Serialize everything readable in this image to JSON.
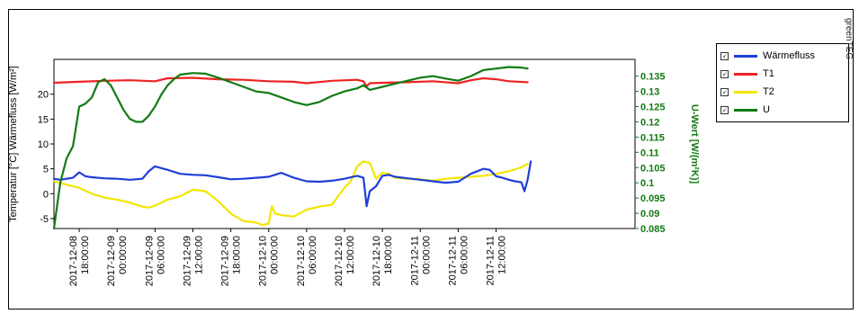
{
  "watermark": "greenTEG",
  "legend": {
    "items": [
      {
        "label": "Wärmefluss",
        "checked": "🗸",
        "color": "#1f3fd6"
      },
      {
        "label": "T1",
        "checked": "🗸",
        "color": "#ee2222"
      },
      {
        "label": "T2",
        "checked": "🗸",
        "color": "#f2e600"
      },
      {
        "label": "U",
        "checked": "🗸",
        "color": "#137a13"
      }
    ]
  },
  "chart_data": {
    "type": "line",
    "title": "",
    "ylabel": "Temperatur [°C] Wärmefluss [W/m²]",
    "y2label": "U-Wert [W/(m²K)]",
    "ylim": [
      -7,
      27
    ],
    "y2lim": [
      0.085,
      0.1405
    ],
    "xlim": [
      0,
      92
    ],
    "x_unit": "hours since 2017-12-08 14:00",
    "x_ticks": [
      {
        "x": 4,
        "line1": "2017-12-08",
        "line2": "18:00:00"
      },
      {
        "x": 10,
        "line1": "2017-12-09",
        "line2": "00:00:00"
      },
      {
        "x": 16,
        "line1": "2017-12-09",
        "line2": "06:00:00"
      },
      {
        "x": 22,
        "line1": "2017-12-09",
        "line2": "12:00:00"
      },
      {
        "x": 28,
        "line1": "2017-12-09",
        "line2": "18:00:00"
      },
      {
        "x": 34,
        "line1": "2017-12-10",
        "line2": "00:00:00"
      },
      {
        "x": 40,
        "line1": "2017-12-10",
        "line2": "06:00:00"
      },
      {
        "x": 46,
        "line1": "2017-12-10",
        "line2": "12:00:00"
      },
      {
        "x": 52,
        "line1": "2017-12-10",
        "line2": "18:00:00"
      },
      {
        "x": 58,
        "line1": "2017-12-11",
        "line2": "00:00:00"
      },
      {
        "x": 64,
        "line1": "2017-12-11",
        "line2": "06:00:00"
      },
      {
        "x": 70,
        "line1": "2017-12-11",
        "line2": "12:00:00"
      }
    ],
    "y_ticks": [
      -5,
      0,
      5,
      10,
      15,
      20
    ],
    "y2_ticks": [
      0.085,
      0.09,
      0.095,
      0.1,
      0.105,
      0.11,
      0.115,
      0.12,
      0.125,
      0.13,
      0.135
    ],
    "y2_tick_labels": [
      "0.085",
      "0.09",
      "0.095",
      "0.1",
      "0.105",
      "0.11",
      "0.115",
      "0.12",
      "0.125",
      "0.13",
      "0.135"
    ],
    "series": [
      {
        "name": "Wärmefluss",
        "axis": "left",
        "color": "#1f3fd6",
        "x": [
          0,
          1,
          3,
          4,
          5,
          6,
          8,
          10,
          12,
          14,
          15,
          16,
          18,
          20,
          22,
          24,
          26,
          28,
          30,
          32,
          34,
          36,
          38,
          40,
          42,
          44,
          46,
          48,
          49,
          49.5,
          50,
          51,
          52,
          53,
          54,
          56,
          58,
          60,
          62,
          64,
          66,
          68,
          69,
          70,
          71,
          72,
          73,
          74,
          74.5,
          75,
          75.5
        ],
        "y": [
          3,
          2.8,
          3.2,
          4.3,
          3.5,
          3.3,
          3.1,
          3.0,
          2.8,
          3.0,
          4.5,
          5.5,
          4.8,
          4.0,
          3.8,
          3.7,
          3.3,
          2.9,
          3.0,
          3.2,
          3.4,
          4.2,
          3.2,
          2.5,
          2.4,
          2.6,
          3.0,
          3.6,
          3.2,
          -2.5,
          0.5,
          1.5,
          3.6,
          3.8,
          3.4,
          3.1,
          2.8,
          2.5,
          2.2,
          2.4,
          4.0,
          5.0,
          4.8,
          3.5,
          3.2,
          2.8,
          2.5,
          2.3,
          0.5,
          2.8,
          6.5
        ]
      },
      {
        "name": "T1",
        "axis": "left",
        "color": "#ee2222",
        "x": [
          0,
          4,
          8,
          12,
          16,
          18,
          22,
          26,
          30,
          34,
          38,
          40,
          44,
          48,
          49,
          49.5,
          50,
          52,
          56,
          60,
          64,
          66,
          68,
          70,
          72,
          75
        ],
        "y": [
          22.3,
          22.5,
          22.7,
          22.8,
          22.6,
          23.2,
          23.3,
          23.0,
          22.9,
          22.6,
          22.5,
          22.2,
          22.7,
          22.9,
          22.6,
          21.6,
          22.2,
          22.3,
          22.4,
          22.6,
          22.2,
          22.8,
          23.2,
          23.0,
          22.6,
          22.4
        ]
      },
      {
        "name": "T2",
        "axis": "left",
        "color": "#f2e600",
        "x": [
          0,
          2,
          4,
          6,
          8,
          10,
          12,
          14,
          15,
          16,
          18,
          20,
          22,
          24,
          26,
          28,
          30,
          32,
          33,
          34,
          34.5,
          35,
          36,
          38,
          40,
          42,
          44,
          46,
          47,
          48,
          49,
          50,
          51,
          52,
          53,
          54,
          56,
          58,
          60,
          62,
          64,
          66,
          68,
          70,
          72,
          74,
          75
        ],
        "y": [
          2.5,
          1.8,
          1.2,
          0.0,
          -0.8,
          -1.2,
          -1.8,
          -2.6,
          -2.8,
          -2.4,
          -1.2,
          -0.5,
          0.8,
          0.5,
          -1.5,
          -4.0,
          -5.5,
          -5.8,
          -6.3,
          -6.0,
          -2.5,
          -4.0,
          -4.3,
          -4.6,
          -3.2,
          -2.6,
          -2.2,
          1.2,
          2.5,
          5.5,
          6.5,
          6.2,
          3.0,
          4.2,
          4.0,
          3.2,
          3.0,
          2.9,
          2.6,
          3.0,
          3.2,
          3.4,
          3.6,
          4.0,
          4.5,
          5.3,
          6.0
        ]
      },
      {
        "name": "U",
        "axis": "right",
        "color": "#137a13",
        "x": [
          0,
          1,
          2,
          3,
          4,
          5,
          6,
          7,
          8,
          9,
          10,
          11,
          12,
          13,
          14,
          15,
          16,
          17,
          18,
          19,
          20,
          22,
          24,
          26,
          28,
          30,
          32,
          34,
          36,
          38,
          40,
          42,
          44,
          46,
          48,
          49,
          50,
          51,
          52,
          54,
          56,
          58,
          60,
          62,
          64,
          66,
          68,
          70,
          72,
          74,
          75
        ],
        "y": [
          0.085,
          0.1,
          0.108,
          0.112,
          0.125,
          0.126,
          0.128,
          0.133,
          0.134,
          0.132,
          0.128,
          0.124,
          0.121,
          0.12,
          0.12,
          0.122,
          0.125,
          0.129,
          0.132,
          0.134,
          0.1355,
          0.136,
          0.1358,
          0.1345,
          0.133,
          0.1315,
          0.13,
          0.1295,
          0.128,
          0.1265,
          0.1255,
          0.1265,
          0.1285,
          0.13,
          0.131,
          0.132,
          0.1305,
          0.131,
          0.1315,
          0.1325,
          0.1335,
          0.1345,
          0.135,
          0.1342,
          0.1335,
          0.135,
          0.137,
          0.1375,
          0.138,
          0.1378,
          0.1375
        ]
      }
    ]
  }
}
